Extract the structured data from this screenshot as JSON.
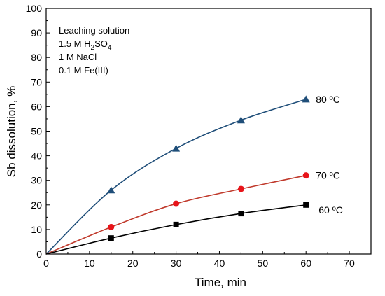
{
  "chart_data": {
    "type": "line",
    "xlabel": "Time, min",
    "ylabel": "Sb dissolution, %",
    "xlim": [
      0,
      75
    ],
    "ylim": [
      0,
      100
    ],
    "xticks": [
      0,
      10,
      20,
      30,
      40,
      50,
      60,
      70
    ],
    "yticks": [
      0,
      10,
      20,
      30,
      40,
      50,
      60,
      70,
      80,
      90,
      100
    ],
    "grid": false,
    "annotation": {
      "lines": [
        {
          "text": "Leaching solution"
        },
        {
          "text": "1.5 M H",
          "sub": "2",
          "after": "SO",
          "sub2": "4"
        },
        {
          "text": "1 M NaCl"
        },
        {
          "text": "0.1 M Fe(III)"
        }
      ]
    },
    "series": [
      {
        "name": "80 ºC",
        "marker": "triangle",
        "marker_color": "#1f4e79",
        "line_color": "#1f4e79",
        "x": [
          0,
          15,
          30,
          45,
          60
        ],
        "y": [
          0,
          26,
          43,
          54.5,
          63
        ]
      },
      {
        "name": "70 ºC",
        "marker": "circle",
        "marker_color": "#e8141a",
        "line_color": "#c0392b",
        "x": [
          0,
          15,
          30,
          45,
          60
        ],
        "y": [
          0,
          11,
          20.5,
          26.5,
          32
        ]
      },
      {
        "name": "60 ºC",
        "marker": "square",
        "marker_color": "#000000",
        "line_color": "#000000",
        "x": [
          0,
          15,
          30,
          45,
          60
        ],
        "y": [
          0,
          6.5,
          12,
          16.5,
          20
        ]
      }
    ]
  }
}
